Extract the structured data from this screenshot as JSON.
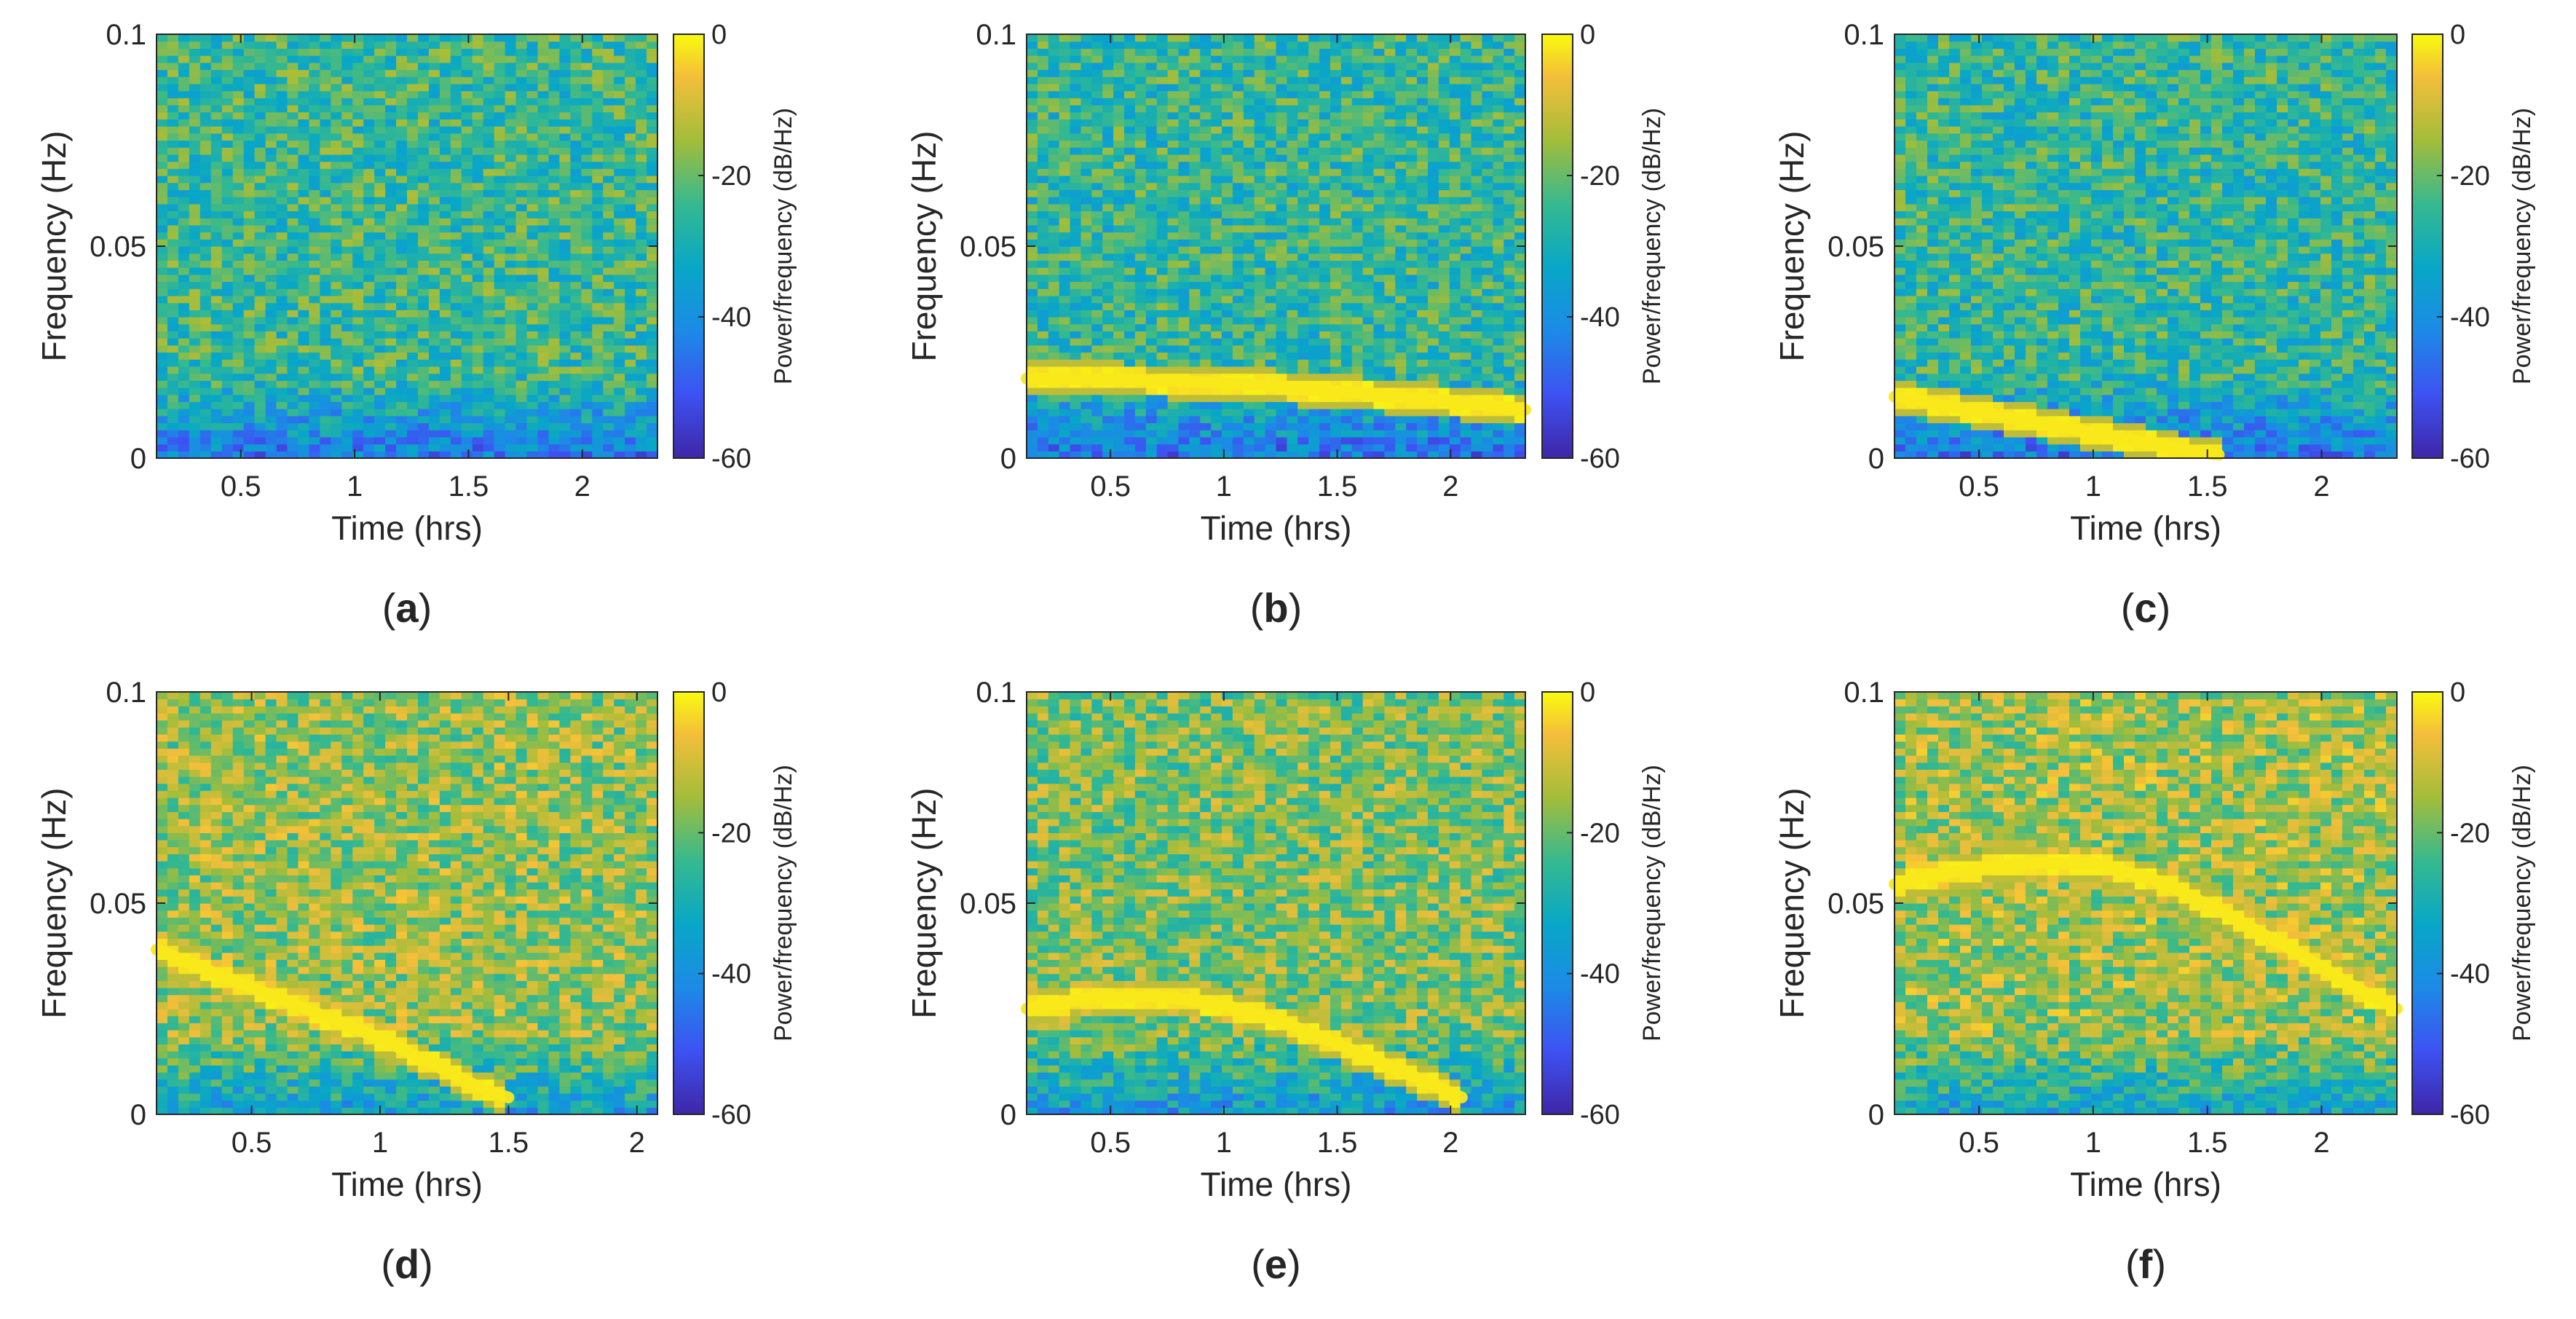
{
  "chart_data": [
    {
      "type": "heatmap",
      "label": "(a)",
      "xlabel": "Time (hrs)",
      "ylabel": "Frequency (Hz)",
      "colorbar_label": "Power/frequency (dB/Hz)",
      "xlim": [
        0.13,
        2.33
      ],
      "ylim": [
        0,
        0.1
      ],
      "xticks": [
        0.5,
        1,
        1.5,
        2
      ],
      "xtick_labels": [
        "0.5",
        "1",
        "1.5",
        "2"
      ],
      "yticks": [
        0,
        0.05,
        0.1
      ],
      "ytick_labels": [
        "0",
        "0.05",
        "0.1"
      ],
      "clim": [
        -60,
        0
      ],
      "cticks": [
        0,
        -20,
        -40,
        -60
      ],
      "ctick_labels": [
        "0",
        "-20",
        "-40",
        "-60"
      ],
      "background_level": -25,
      "ridge": []
    },
    {
      "type": "heatmap",
      "label": "(b)",
      "xlabel": "Time (hrs)",
      "ylabel": "Frequency (Hz)",
      "colorbar_label": "Power/frequency (dB/Hz)",
      "xlim": [
        0.13,
        2.33
      ],
      "ylim": [
        0,
        0.1
      ],
      "xticks": [
        0.5,
        1,
        1.5,
        2
      ],
      "xtick_labels": [
        "0.5",
        "1",
        "1.5",
        "2"
      ],
      "yticks": [
        0,
        0.05,
        0.1
      ],
      "ytick_labels": [
        "0",
        "0.05",
        "0.1"
      ],
      "clim": [
        -60,
        0
      ],
      "cticks": [
        0,
        -20,
        -40,
        -60
      ],
      "ctick_labels": [
        "0",
        "-20",
        "-40",
        "-60"
      ],
      "background_level": -26,
      "ridge": [
        [
          0.13,
          0.0188
        ],
        [
          0.5,
          0.0186
        ],
        [
          1.0,
          0.0178
        ],
        [
          1.5,
          0.0158
        ],
        [
          2.0,
          0.0133
        ],
        [
          2.33,
          0.0114
        ]
      ]
    },
    {
      "type": "heatmap",
      "label": "(c)",
      "xlabel": "Time (hrs)",
      "ylabel": "Frequency (Hz)",
      "colorbar_label": "Power/frequency (dB/Hz)",
      "xlim": [
        0.13,
        2.33
      ],
      "ylim": [
        0,
        0.1
      ],
      "xticks": [
        0.5,
        1,
        1.5,
        2
      ],
      "xtick_labels": [
        "0.5",
        "1",
        "1.5",
        "2"
      ],
      "yticks": [
        0,
        0.05,
        0.1
      ],
      "ytick_labels": [
        "0",
        "0.05",
        "0.1"
      ],
      "clim": [
        -60,
        0
      ],
      "cticks": [
        0,
        -20,
        -40,
        -60
      ],
      "ctick_labels": [
        "0",
        "-20",
        "-40",
        "-60"
      ],
      "background_level": -26,
      "ridge": [
        [
          0.13,
          0.0145
        ],
        [
          0.5,
          0.011
        ],
        [
          1.0,
          0.006
        ],
        [
          1.4,
          0.0018
        ],
        [
          1.55,
          0.0008
        ]
      ]
    },
    {
      "type": "heatmap",
      "label": "(d)",
      "xlabel": "Time (hrs)",
      "ylabel": "Frequency (Hz)",
      "colorbar_label": "Power/frequency (dB/Hz)",
      "xlim": [
        0.13,
        2.08
      ],
      "ylim": [
        0,
        0.1
      ],
      "xticks": [
        0.5,
        1,
        1.5,
        2
      ],
      "xtick_labels": [
        "0.5",
        "1",
        "1.5",
        "2"
      ],
      "yticks": [
        0,
        0.05,
        0.1
      ],
      "ytick_labels": [
        "0",
        "0.05",
        "0.1"
      ],
      "clim": [
        -60,
        0
      ],
      "cticks": [
        0,
        -20,
        -40,
        -60
      ],
      "ctick_labels": [
        "0",
        "-20",
        "-40",
        "-60"
      ],
      "background_level": -16,
      "ridge": [
        [
          0.13,
          0.039
        ],
        [
          0.5,
          0.03
        ],
        [
          1.0,
          0.018
        ],
        [
          1.4,
          0.006
        ],
        [
          1.5,
          0.004
        ]
      ]
    },
    {
      "type": "heatmap",
      "label": "(e)",
      "xlabel": "Time (hrs)",
      "ylabel": "Frequency (Hz)",
      "colorbar_label": "Power/frequency (dB/Hz)",
      "xlim": [
        0.13,
        2.33
      ],
      "ylim": [
        0,
        0.1
      ],
      "xticks": [
        0.5,
        1,
        1.5,
        2
      ],
      "xtick_labels": [
        "0.5",
        "1",
        "1.5",
        "2"
      ],
      "yticks": [
        0,
        0.05,
        0.1
      ],
      "ytick_labels": [
        "0",
        "0.05",
        "0.1"
      ],
      "clim": [
        -60,
        0
      ],
      "cticks": [
        0,
        -20,
        -40,
        -60
      ],
      "ctick_labels": [
        "0",
        "-20",
        "-40",
        "-60"
      ],
      "background_level": -18,
      "ridge": [
        [
          0.13,
          0.025
        ],
        [
          0.4,
          0.0275
        ],
        [
          0.7,
          0.028
        ],
        [
          1.0,
          0.026
        ],
        [
          1.3,
          0.021
        ],
        [
          1.6,
          0.0145
        ],
        [
          1.9,
          0.0075
        ],
        [
          2.05,
          0.004
        ]
      ]
    },
    {
      "type": "heatmap",
      "label": "(f)",
      "xlabel": "Time (hrs)",
      "ylabel": "Frequency (Hz)",
      "colorbar_label": "Power/frequency (dB/Hz)",
      "xlim": [
        0.13,
        2.33
      ],
      "ylim": [
        0,
        0.1
      ],
      "xticks": [
        0.5,
        1,
        1.5,
        2
      ],
      "xtick_labels": [
        "0.5",
        "1",
        "1.5",
        "2"
      ],
      "yticks": [
        0,
        0.05,
        0.1
      ],
      "ytick_labels": [
        "0",
        "0.05",
        "0.1"
      ],
      "clim": [
        -60,
        0
      ],
      "cticks": [
        0,
        -20,
        -40,
        -60
      ],
      "ctick_labels": [
        "0",
        "-20",
        "-40",
        "-60"
      ],
      "background_level": -15,
      "ridge": [
        [
          0.13,
          0.0545
        ],
        [
          0.4,
          0.0575
        ],
        [
          0.7,
          0.0595
        ],
        [
          1.0,
          0.0595
        ],
        [
          1.3,
          0.055
        ],
        [
          1.6,
          0.047
        ],
        [
          1.9,
          0.038
        ],
        [
          2.15,
          0.03
        ],
        [
          2.33,
          0.025
        ]
      ]
    }
  ]
}
